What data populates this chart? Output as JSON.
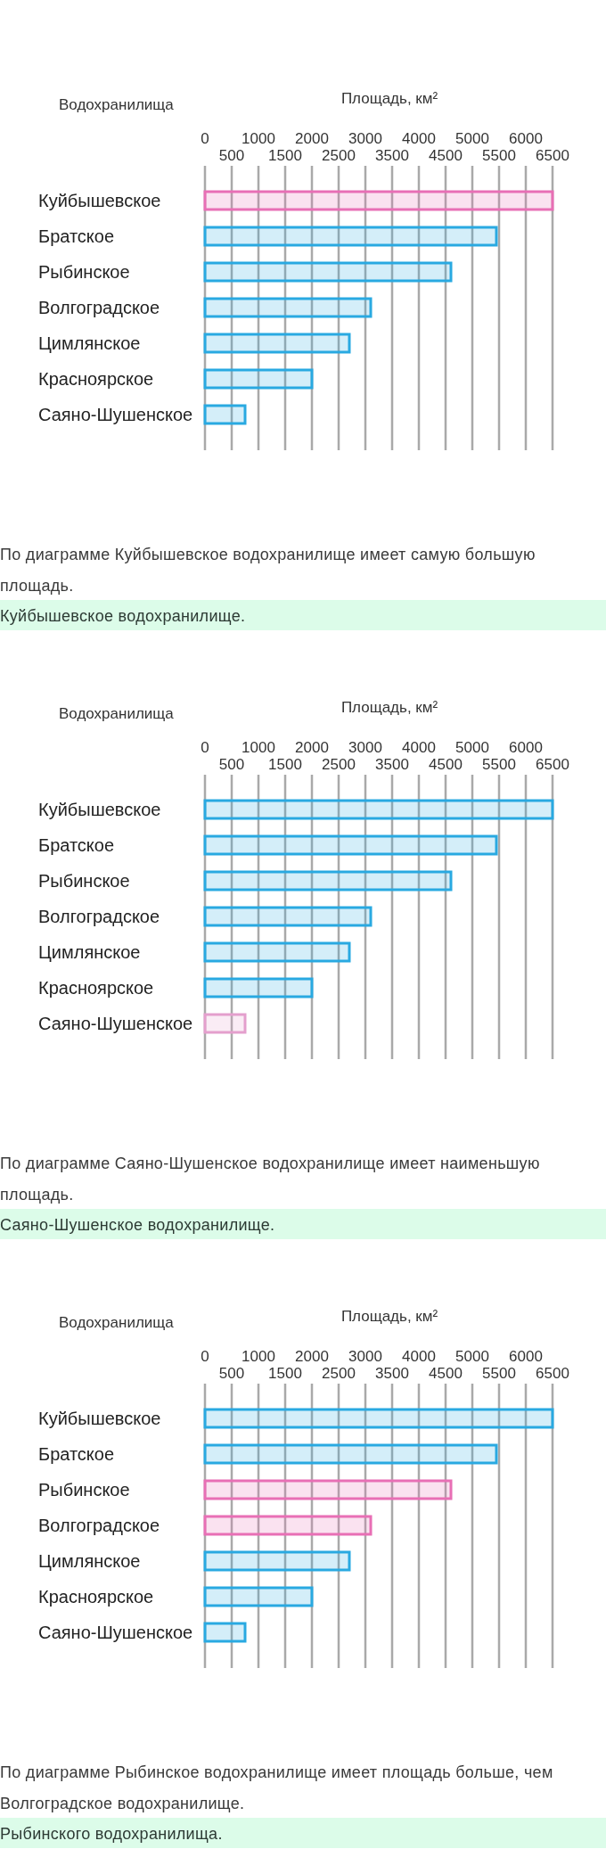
{
  "chart_data": [
    {
      "type": "bar",
      "orientation": "horizontal",
      "ylabel": "Водохранилища",
      "xlabel": "Площадь, км²",
      "categories": [
        "Куйбышевское",
        "Братское",
        "Рыбинское",
        "Волгоградское",
        "Цимлянское",
        "Красноярское",
        "Саяно-Шушенское"
      ],
      "values": [
        6500,
        5450,
        4600,
        3100,
        2700,
        2000,
        750
      ],
      "colors": [
        "#e86fb5",
        "#29a9e1",
        "#29a9e1",
        "#29a9e1",
        "#29a9e1",
        "#29a9e1",
        "#29a9e1"
      ],
      "xlim": [
        0,
        6500
      ],
      "xticks": [
        0,
        1000,
        2000,
        3000,
        4000,
        5000,
        6000
      ],
      "x2lim": [
        0,
        6500
      ],
      "x2ticks": [
        500,
        1500,
        2500,
        3500,
        4500,
        5500,
        6500
      ],
      "grid": "x",
      "annotations": [
        "По диаграмме Куйбышевское водохранилище имеет самую большую площадь.",
        "Куйбышевское водохранилище."
      ]
    },
    {
      "type": "bar",
      "orientation": "horizontal",
      "ylabel": "Водохранилища",
      "xlabel": "Площадь, км²",
      "categories": [
        "Куйбышевское",
        "Братское",
        "Рыбинское",
        "Волгоградское",
        "Цимлянское",
        "Красноярское",
        "Саяно-Шушенское"
      ],
      "values": [
        6500,
        5450,
        4600,
        3100,
        2700,
        2000,
        750
      ],
      "colors": [
        "#29a9e1",
        "#29a9e1",
        "#29a9e1",
        "#29a9e1",
        "#29a9e1",
        "#29a9e1",
        "#e49fcd"
      ],
      "xlim": [
        0,
        6500
      ],
      "xticks": [
        0,
        1000,
        2000,
        3000,
        4000,
        5000,
        6000
      ],
      "x2lim": [
        0,
        6500
      ],
      "x2ticks": [
        500,
        1500,
        2500,
        3500,
        4500,
        5500,
        6500
      ],
      "grid": "x",
      "annotations": [
        "По диаграмме Саяно-Шушенское водохранилище имеет наименьшую площадь.",
        "Саяно-Шушенское водохранилище."
      ]
    },
    {
      "type": "bar",
      "orientation": "horizontal",
      "ylabel": "Водохранилища",
      "xlabel": "Площадь, км²",
      "categories": [
        "Куйбышевское",
        "Братское",
        "Рыбинское",
        "Волгоградское",
        "Цимлянское",
        "Красноярское",
        "Саяно-Шушенское"
      ],
      "values": [
        6500,
        5450,
        4600,
        3100,
        2700,
        2000,
        750
      ],
      "colors": [
        "#29a9e1",
        "#29a9e1",
        "#e86fb5",
        "#e86fb5",
        "#29a9e1",
        "#29a9e1",
        "#29a9e1"
      ],
      "xlim": [
        0,
        6500
      ],
      "xticks": [
        0,
        1000,
        2000,
        3000,
        4000,
        5000,
        6000
      ],
      "x2lim": [
        0,
        6500
      ],
      "x2ticks": [
        500,
        1500,
        2500,
        3500,
        4500,
        5500,
        6500
      ],
      "grid": "x",
      "annotations": [
        "По диаграмме Рыбинское водохранилище имеет площадь больше, чем Волгоградское водохранилище.",
        "Рыбинского водохранилища."
      ]
    }
  ]
}
